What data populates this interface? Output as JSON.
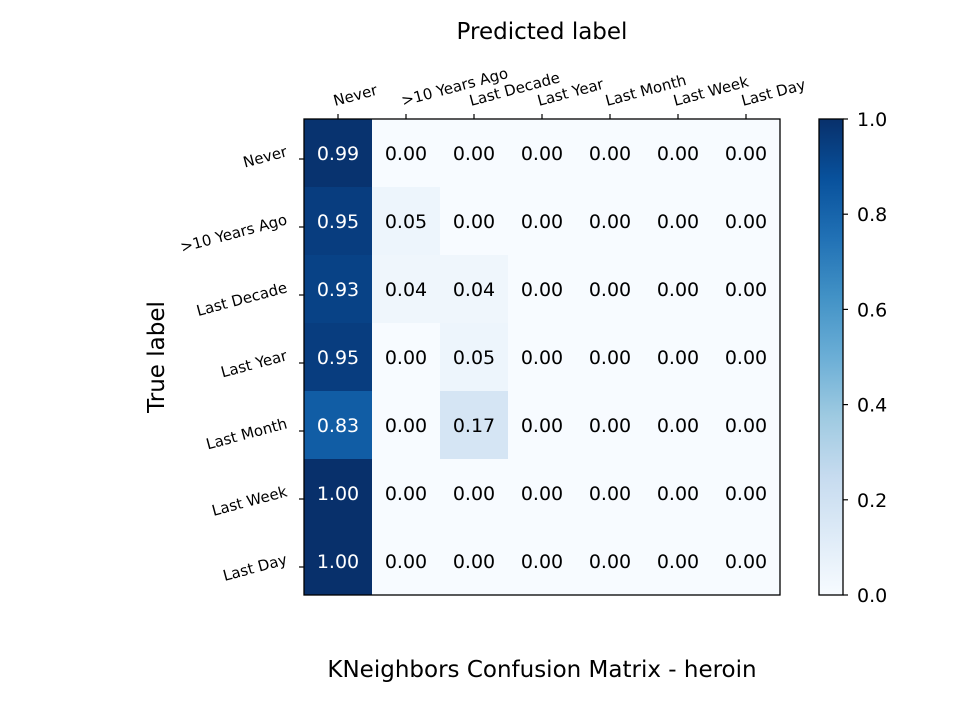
{
  "chart_data": {
    "type": "heatmap",
    "title": "KNeighbors Confusion Matrix - heroin",
    "xlabel": "Predicted label",
    "ylabel": "True label",
    "x_categories": [
      "Never",
      ">10 Years Ago",
      "Last Decade",
      "Last Year",
      "Last Month",
      "Last Week",
      "Last Day"
    ],
    "y_categories": [
      "Never",
      ">10 Years Ago",
      "Last Decade",
      "Last Year",
      "Last Month",
      "Last Week",
      "Last Day"
    ],
    "values": [
      [
        0.99,
        0.0,
        0.0,
        0.0,
        0.0,
        0.0,
        0.0
      ],
      [
        0.95,
        0.05,
        0.0,
        0.0,
        0.0,
        0.0,
        0.0
      ],
      [
        0.93,
        0.04,
        0.04,
        0.0,
        0.0,
        0.0,
        0.0
      ],
      [
        0.95,
        0.0,
        0.05,
        0.0,
        0.0,
        0.0,
        0.0
      ],
      [
        0.83,
        0.0,
        0.17,
        0.0,
        0.0,
        0.0,
        0.0
      ],
      [
        1.0,
        0.0,
        0.0,
        0.0,
        0.0,
        0.0,
        0.0
      ],
      [
        1.0,
        0.0,
        0.0,
        0.0,
        0.0,
        0.0,
        0.0
      ]
    ],
    "value_labels": [
      [
        "0.99",
        "0.00",
        "0.00",
        "0.00",
        "0.00",
        "0.00",
        "0.00"
      ],
      [
        "0.95",
        "0.05",
        "0.00",
        "0.00",
        "0.00",
        "0.00",
        "0.00"
      ],
      [
        "0.93",
        "0.04",
        "0.04",
        "0.00",
        "0.00",
        "0.00",
        "0.00"
      ],
      [
        "0.95",
        "0.00",
        "0.05",
        "0.00",
        "0.00",
        "0.00",
        "0.00"
      ],
      [
        "0.83",
        "0.00",
        "0.17",
        "0.00",
        "0.00",
        "0.00",
        "0.00"
      ],
      [
        "1.00",
        "0.00",
        "0.00",
        "0.00",
        "0.00",
        "0.00",
        "0.00"
      ],
      [
        "1.00",
        "0.00",
        "0.00",
        "0.00",
        "0.00",
        "0.00",
        "0.00"
      ]
    ],
    "colormap": "Blues",
    "colorbar": {
      "range": [
        0.0,
        1.0
      ],
      "ticks": [
        0.0,
        0.2,
        0.4,
        0.6,
        0.8,
        1.0
      ],
      "tick_labels": [
        "0.0",
        "0.2",
        "0.4",
        "0.6",
        "0.8",
        "1.0"
      ]
    },
    "x_axis_position": "top",
    "grid": false
  }
}
